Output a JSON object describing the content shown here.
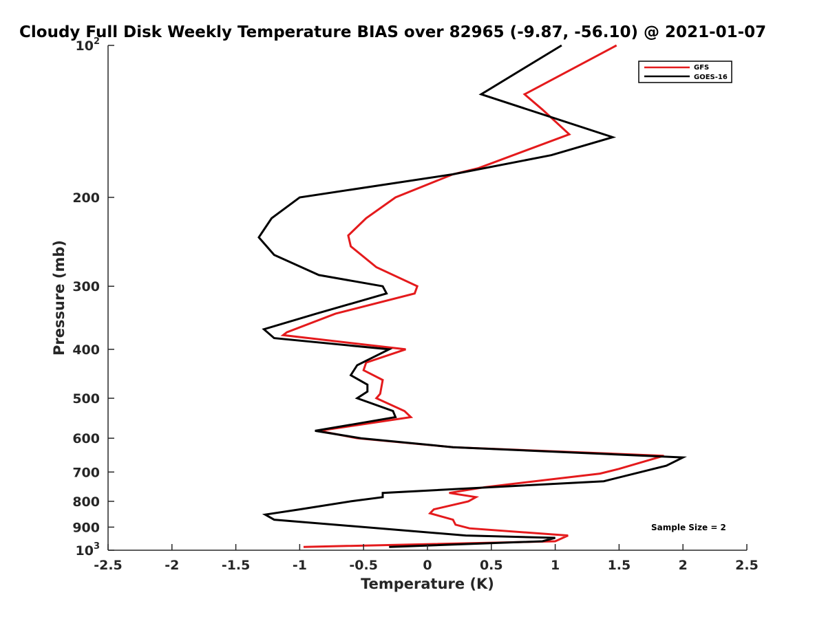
{
  "chart_data": {
    "type": "line",
    "title": "Cloudy Full Disk Weekly Temperature BIAS over 82965 (-9.87, -56.10) @ 2021-01-07",
    "xlabel": "Temperature (K)",
    "ylabel": "Pressure (mb)",
    "xlim": [
      -2.5,
      2.5
    ],
    "ylim": [
      100,
      1000
    ],
    "y_scale": "log",
    "y_reversed": true,
    "grid": false,
    "legend_position": "top-right",
    "x_ticks": [
      {
        "value": -2.5,
        "label": "-2.5"
      },
      {
        "value": -2,
        "label": "-2"
      },
      {
        "value": -1.5,
        "label": "-1.5"
      },
      {
        "value": -1,
        "label": "-1"
      },
      {
        "value": -0.5,
        "label": "-0.5"
      },
      {
        "value": 0,
        "label": "0"
      },
      {
        "value": 0.5,
        "label": "0.5"
      },
      {
        "value": 1,
        "label": "1"
      },
      {
        "value": 1.5,
        "label": "1.5"
      },
      {
        "value": 2,
        "label": "2"
      },
      {
        "value": 2.5,
        "label": "2.5"
      }
    ],
    "y_ticks": [
      {
        "value": 100,
        "label": "10",
        "sup": "2"
      },
      {
        "value": 200,
        "label": "200"
      },
      {
        "value": 300,
        "label": "300"
      },
      {
        "value": 400,
        "label": "400"
      },
      {
        "value": 500,
        "label": "500"
      },
      {
        "value": 600,
        "label": "600"
      },
      {
        "value": 700,
        "label": "700"
      },
      {
        "value": 800,
        "label": "800"
      },
      {
        "value": 900,
        "label": "900"
      },
      {
        "value": 1000,
        "label": "10",
        "sup": "3"
      }
    ],
    "series": [
      {
        "name": "GFS",
        "color": "#e41a1c",
        "points": [
          [
            1.48,
            100
          ],
          [
            0.76,
            125
          ],
          [
            0.9,
            134
          ],
          [
            1.11,
            150
          ],
          [
            0.4,
            175
          ],
          [
            0.2,
            180
          ],
          [
            -0.25,
            200
          ],
          [
            -0.48,
            220
          ],
          [
            -0.62,
            238
          ],
          [
            -0.6,
            250
          ],
          [
            -0.4,
            275
          ],
          [
            -0.08,
            300
          ],
          [
            -0.1,
            310
          ],
          [
            -0.72,
            340
          ],
          [
            -1.1,
            370
          ],
          [
            -1.13,
            375
          ],
          [
            -0.17,
            400
          ],
          [
            -0.48,
            425
          ],
          [
            -0.5,
            440
          ],
          [
            -0.35,
            460
          ],
          [
            -0.37,
            490
          ],
          [
            -0.4,
            500
          ],
          [
            -0.18,
            530
          ],
          [
            -0.13,
            545
          ],
          [
            -0.85,
            580
          ],
          [
            -0.55,
            600
          ],
          [
            0.2,
            625
          ],
          [
            1.85,
            650
          ],
          [
            1.5,
            690
          ],
          [
            1.35,
            705
          ],
          [
            0.45,
            750
          ],
          [
            0.17,
            770
          ],
          [
            0.38,
            785
          ],
          [
            0.32,
            800
          ],
          [
            0.05,
            830
          ],
          [
            0.02,
            845
          ],
          [
            0.2,
            870
          ],
          [
            0.22,
            890
          ],
          [
            0.33,
            905
          ],
          [
            1.1,
            935
          ],
          [
            1.0,
            960
          ],
          [
            -0.97,
            985
          ]
        ]
      },
      {
        "name": "GOES-16",
        "color": "#000000",
        "points": [
          [
            1.05,
            100
          ],
          [
            0.42,
            125
          ],
          [
            1.45,
            152
          ],
          [
            0.97,
            165
          ],
          [
            0.2,
            180
          ],
          [
            -1.0,
            200
          ],
          [
            -1.22,
            220
          ],
          [
            -1.32,
            240
          ],
          [
            -1.2,
            260
          ],
          [
            -0.85,
            285
          ],
          [
            -0.35,
            300
          ],
          [
            -0.32,
            310
          ],
          [
            -0.87,
            340
          ],
          [
            -1.28,
            365
          ],
          [
            -1.2,
            380
          ],
          [
            -0.3,
            400
          ],
          [
            -0.55,
            430
          ],
          [
            -0.6,
            450
          ],
          [
            -0.47,
            470
          ],
          [
            -0.47,
            485
          ],
          [
            -0.55,
            500
          ],
          [
            -0.27,
            530
          ],
          [
            -0.25,
            545
          ],
          [
            -0.88,
            580
          ],
          [
            -0.52,
            600
          ],
          [
            0.2,
            625
          ],
          [
            2.0,
            655
          ],
          [
            1.87,
            680
          ],
          [
            1.67,
            700
          ],
          [
            1.38,
            730
          ],
          [
            -0.35,
            770
          ],
          [
            -0.35,
            785
          ],
          [
            -0.6,
            800
          ],
          [
            -1.0,
            830
          ],
          [
            -1.27,
            850
          ],
          [
            -1.2,
            870
          ],
          [
            0.3,
            935
          ],
          [
            1.0,
            945
          ],
          [
            0.9,
            960
          ],
          [
            -0.3,
            985
          ]
        ]
      }
    ],
    "annotation": "Sample Size = 2"
  }
}
